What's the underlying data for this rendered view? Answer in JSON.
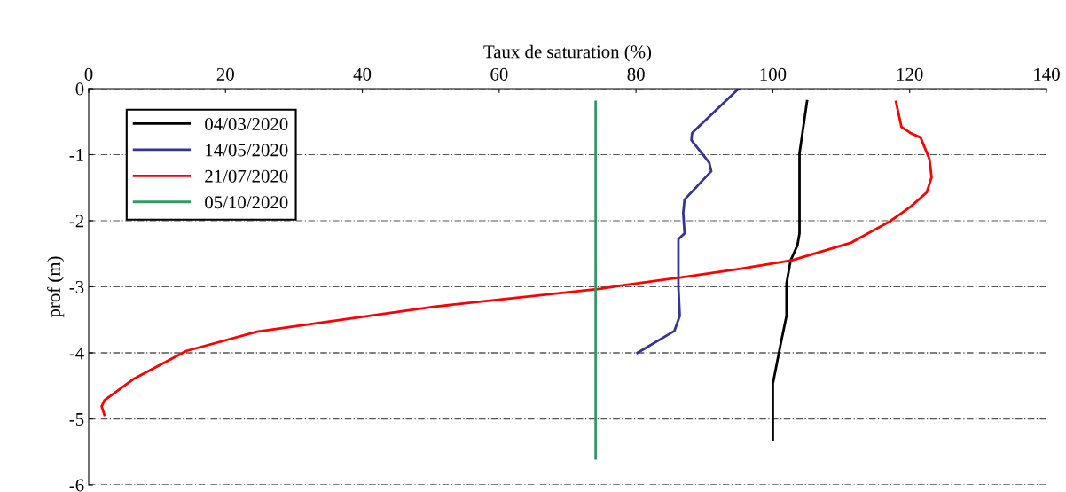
{
  "chart_data": {
    "type": "line",
    "xlabel": "Taux de saturation (%)",
    "ylabel": "prof (m)",
    "xlim": [
      0,
      140
    ],
    "xticks": [
      0,
      20,
      40,
      60,
      80,
      100,
      120,
      140
    ],
    "ylim": [
      -6,
      0
    ],
    "yticks": [
      -6,
      -5,
      -4,
      -3,
      -2,
      -1,
      0
    ],
    "grid": "y",
    "legend": "top left",
    "marker": "none",
    "line_style": "solid",
    "series": [
      {
        "name": "04/03/2020",
        "color": "#000000",
        "x": [
          105.0,
          103.9,
          103.9,
          103.6,
          102.6,
          102.0,
          102.0,
          101.1,
          100.0,
          100.0
        ],
        "values": [
          -0.19,
          -0.98,
          -2.19,
          -2.37,
          -2.6,
          -2.95,
          -3.44,
          -3.89,
          -4.47,
          -5.32
        ]
      },
      {
        "name": "14/05/2020",
        "color": "#333399",
        "x": [
          95.0,
          88.2,
          88.1,
          90.7,
          91.0,
          87.1,
          86.9,
          87.1,
          86.2,
          86.2,
          86.4,
          85.6,
          80.2
        ],
        "values": [
          0,
          -0.67,
          -0.78,
          -1.12,
          -1.25,
          -1.68,
          -1.88,
          -2.19,
          -2.28,
          -3.0,
          -3.44,
          -3.67,
          -4.0
        ]
      },
      {
        "name": "21/07/2020",
        "color": "#ff0000",
        "x": [
          118.0,
          118.8,
          120.1,
          121.6,
          122.9,
          123.2,
          122.5,
          120.1,
          117.1,
          111.5,
          102.8,
          95.1,
          86.4,
          77.8,
          74.9,
          50.6,
          24.6,
          14.3,
          6.5,
          2.3,
          1.9,
          2.3
        ],
        "values": [
          -0.2,
          -0.58,
          -0.67,
          -0.74,
          -1.07,
          -1.34,
          -1.57,
          -1.79,
          -2.01,
          -2.33,
          -2.6,
          -2.73,
          -2.86,
          -2.98,
          -3.03,
          -3.3,
          -3.68,
          -3.97,
          -4.4,
          -4.72,
          -4.81,
          -4.94
        ]
      },
      {
        "name": "05/10/2020",
        "color": "#339966",
        "x": [
          74.1,
          74.1
        ],
        "values": [
          -0.2,
          -5.6
        ]
      }
    ]
  }
}
